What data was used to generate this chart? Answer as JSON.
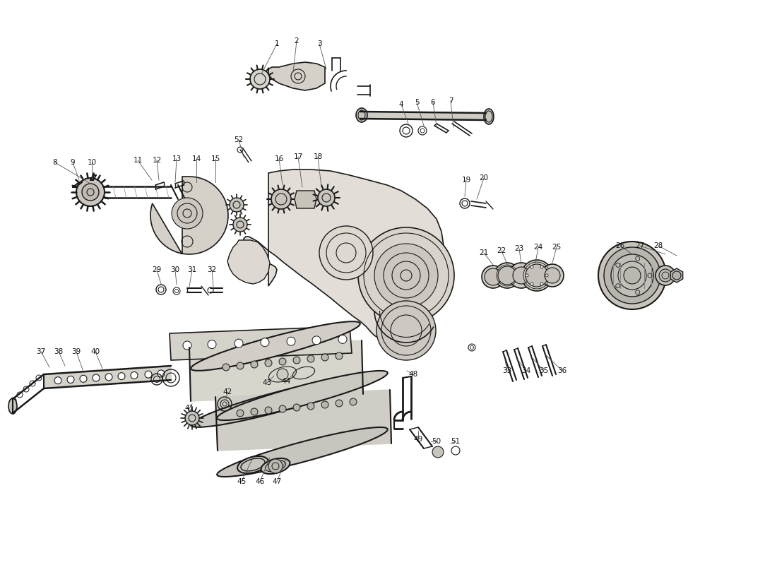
{
  "bg_color": "#ffffff",
  "line_color": "#1a1a1a",
  "figsize": [
    11.0,
    8.0
  ],
  "dpi": 100,
  "part_labels": [
    [
      "1",
      392,
      62
    ],
    [
      "2",
      420,
      58
    ],
    [
      "3",
      452,
      62
    ],
    [
      "4",
      568,
      148
    ],
    [
      "5",
      590,
      145
    ],
    [
      "6",
      613,
      145
    ],
    [
      "7",
      638,
      143
    ],
    [
      "8",
      78,
      230
    ],
    [
      "9",
      103,
      230
    ],
    [
      "10",
      130,
      230
    ],
    [
      "11",
      195,
      227
    ],
    [
      "12",
      222,
      227
    ],
    [
      "13",
      250,
      225
    ],
    [
      "14",
      278,
      225
    ],
    [
      "15",
      305,
      225
    ],
    [
      "16",
      395,
      225
    ],
    [
      "17",
      422,
      222
    ],
    [
      "18",
      450,
      222
    ],
    [
      "19",
      660,
      255
    ],
    [
      "20",
      685,
      252
    ],
    [
      "21",
      685,
      358
    ],
    [
      "22",
      710,
      355
    ],
    [
      "23",
      735,
      352
    ],
    [
      "24",
      762,
      350
    ],
    [
      "25",
      788,
      350
    ],
    [
      "26",
      878,
      348
    ],
    [
      "27",
      906,
      348
    ],
    [
      "28",
      932,
      348
    ],
    [
      "29",
      222,
      382
    ],
    [
      "30",
      248,
      382
    ],
    [
      "31",
      272,
      382
    ],
    [
      "32",
      300,
      382
    ],
    [
      "33",
      718,
      525
    ],
    [
      "34",
      745,
      525
    ],
    [
      "35",
      770,
      525
    ],
    [
      "36",
      796,
      525
    ],
    [
      "37",
      58,
      498
    ],
    [
      "38",
      83,
      498
    ],
    [
      "39",
      108,
      498
    ],
    [
      "40",
      135,
      498
    ],
    [
      "41",
      268,
      578
    ],
    [
      "42",
      322,
      555
    ],
    [
      "43",
      378,
      542
    ],
    [
      "44",
      405,
      540
    ],
    [
      "45",
      342,
      682
    ],
    [
      "46",
      368,
      682
    ],
    [
      "47",
      392,
      682
    ],
    [
      "48",
      585,
      530
    ],
    [
      "49",
      592,
      622
    ],
    [
      "50",
      618,
      625
    ],
    [
      "51",
      645,
      625
    ],
    [
      "52",
      338,
      198
    ]
  ]
}
